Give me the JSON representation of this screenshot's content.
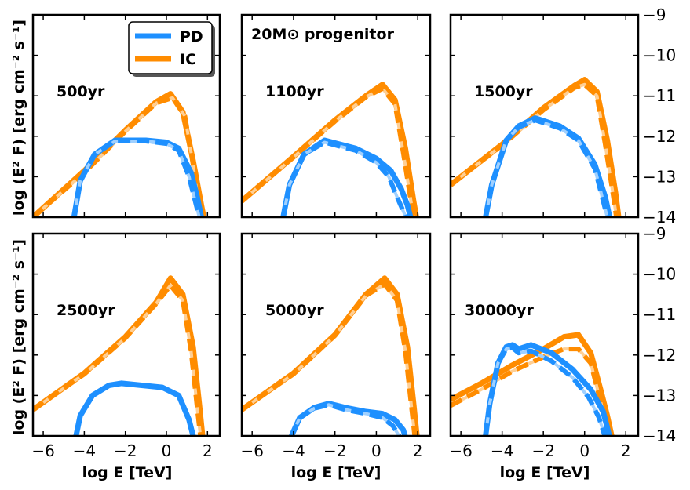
{
  "chart_data": {
    "type": "line",
    "title": "",
    "xlabel": "log E [TeV]",
    "ylabel": "log (E² F) [erg cm⁻² s⁻¹]",
    "annotation": "20M⊙ progenitor",
    "xlim": [
      -6.5,
      2.6
    ],
    "ylim": [
      -14,
      -9
    ],
    "xticks": [
      -6,
      -4,
      -2,
      0,
      2
    ],
    "xtick_labels": [
      "−6",
      "−4",
      "−2",
      "0",
      "2"
    ],
    "yticks": [
      -9,
      -10,
      -11,
      -12,
      -13,
      -14
    ],
    "ytick_labels": [
      "−9",
      "−10",
      "−11",
      "−12",
      "−13",
      "−14"
    ],
    "legend": [
      {
        "label": "PD",
        "color": "#1e90ff"
      },
      {
        "label": "IC",
        "color": "#ff8c00"
      }
    ],
    "colors": {
      "PD": "#1e90ff",
      "IC": "#ff8c00",
      "PD_light": "#9fd0ff",
      "IC_light": "#ffcf94"
    },
    "panels": [
      {
        "label": "500yr",
        "IC": {
          "x": [
            -6.5,
            -4,
            -2,
            -0.5,
            0.2,
            0.8,
            1.3,
            1.7,
            1.9
          ],
          "y": [
            -14,
            -12.85,
            -11.85,
            -11.15,
            -10.95,
            -11.4,
            -12.6,
            -13.7,
            -14.2
          ]
        },
        "IC_dashed": {
          "x": [
            -6.5,
            -4,
            -2,
            -0.5,
            0.3,
            0.9,
            1.3,
            1.6,
            1.8
          ],
          "y": [
            -14,
            -12.9,
            -11.88,
            -11.18,
            -11.05,
            -11.5,
            -12.7,
            -13.8,
            -14.2
          ]
        },
        "PD": {
          "x": [
            -4.5,
            -4.2,
            -3.5,
            -2.5,
            -1,
            0,
            0.6,
            1.2,
            1.5,
            1.7
          ],
          "y": [
            -14,
            -13.1,
            -12.45,
            -12.1,
            -12.1,
            -12.15,
            -12.3,
            -12.9,
            -13.5,
            -14
          ]
        },
        "PD_dashed": {
          "x": [
            -4.5,
            -4.2,
            -3.5,
            -2.5,
            -1,
            0,
            0.6,
            1.1,
            1.4,
            1.6
          ],
          "y": [
            -14,
            -13.1,
            -12.45,
            -12.12,
            -12.12,
            -12.18,
            -12.35,
            -13.0,
            -13.6,
            -14
          ]
        }
      },
      {
        "label": "1100yr",
        "IC": {
          "x": [
            -6.5,
            -4,
            -2,
            -0.5,
            0.3,
            0.9,
            1.4,
            1.8,
            2.0
          ],
          "y": [
            -13.6,
            -12.5,
            -11.6,
            -11.0,
            -10.72,
            -11.1,
            -12.3,
            -13.6,
            -14.2
          ]
        },
        "IC_dashed": {
          "x": [
            -6.5,
            -4,
            -2,
            -0.5,
            0.3,
            0.9,
            1.3,
            1.7,
            1.9
          ],
          "y": [
            -13.6,
            -12.52,
            -11.63,
            -11.03,
            -10.82,
            -11.2,
            -12.4,
            -13.7,
            -14.2
          ]
        },
        "PD": {
          "x": [
            -4.5,
            -4.2,
            -3.5,
            -2.5,
            -1,
            0,
            0.7,
            1.2,
            1.5,
            1.7
          ],
          "y": [
            -14,
            -13.2,
            -12.45,
            -12.1,
            -12.3,
            -12.55,
            -12.85,
            -13.3,
            -13.7,
            -14.1
          ]
        },
        "PD_dashed": {
          "x": [
            -4.5,
            -4.2,
            -3.5,
            -2.5,
            -1,
            0,
            0.6,
            1.0,
            1.3,
            1.5
          ],
          "y": [
            -14,
            -13.2,
            -12.45,
            -12.15,
            -12.35,
            -12.65,
            -13.0,
            -13.5,
            -13.85,
            -14.1
          ]
        }
      },
      {
        "label": "1500yr",
        "IC": {
          "x": [
            -6.5,
            -4,
            -2,
            -0.5,
            0,
            0.6,
            1.1,
            1.5,
            1.7
          ],
          "y": [
            -13.2,
            -12.2,
            -11.3,
            -10.75,
            -10.6,
            -10.9,
            -12.1,
            -13.4,
            -14.2
          ]
        },
        "IC_dashed": {
          "x": [
            -6.5,
            -4,
            -2,
            -0.5,
            0,
            0.6,
            1.0,
            1.4,
            1.6
          ],
          "y": [
            -13.2,
            -12.22,
            -11.35,
            -10.8,
            -10.72,
            -11.0,
            -12.2,
            -13.5,
            -14.2
          ]
        },
        "PD": {
          "x": [
            -4.8,
            -4.5,
            -3.8,
            -3.2,
            -2.4,
            -1.2,
            -0.3,
            0.5,
            1.0,
            1.3
          ],
          "y": [
            -14,
            -13.2,
            -12.1,
            -11.75,
            -11.55,
            -11.75,
            -12.05,
            -12.7,
            -13.5,
            -14.2
          ]
        },
        "PD_dashed": {
          "x": [
            -4.8,
            -4.5,
            -3.8,
            -3.2,
            -2.4,
            -1.2,
            -0.3,
            0.5,
            0.9,
            1.2
          ],
          "y": [
            -14,
            -13.2,
            -12.1,
            -11.78,
            -11.6,
            -11.8,
            -12.1,
            -12.8,
            -13.6,
            -14.2
          ]
        }
      },
      {
        "label": "2500yr",
        "IC": {
          "x": [
            -6.5,
            -4,
            -2,
            -0.5,
            0.2,
            0.8,
            1.3,
            1.6,
            1.8
          ],
          "y": [
            -13.35,
            -12.45,
            -11.55,
            -10.7,
            -10.1,
            -10.5,
            -11.8,
            -13.2,
            -14.2
          ]
        },
        "IC_dashed": {
          "x": [
            -6.5,
            -4,
            -2,
            -0.5,
            0.2,
            0.8,
            1.2,
            1.5,
            1.7
          ],
          "y": [
            -13.35,
            -12.47,
            -11.58,
            -10.73,
            -10.28,
            -10.65,
            -11.9,
            -13.3,
            -14.2
          ]
        },
        "PD": {
          "x": [
            -4.4,
            -4.2,
            -3.6,
            -2.8,
            -2.2,
            -1.2,
            -0.2,
            0.6,
            1.1,
            1.4
          ],
          "y": [
            -14,
            -13.5,
            -13.0,
            -12.75,
            -12.7,
            -12.75,
            -12.8,
            -13.0,
            -13.6,
            -14.2
          ]
        }
      },
      {
        "label": "5000yr",
        "IC": {
          "x": [
            -6.5,
            -4,
            -2,
            -0.5,
            0.4,
            1.0,
            1.5,
            1.8,
            2.0
          ],
          "y": [
            -13.35,
            -12.45,
            -11.5,
            -10.5,
            -10.1,
            -10.5,
            -11.8,
            -13.2,
            -14.2
          ]
        },
        "IC_dashed": {
          "x": [
            -6.5,
            -4,
            -2,
            -0.5,
            0.4,
            1.0,
            1.4,
            1.7,
            1.9
          ],
          "y": [
            -13.35,
            -12.47,
            -11.52,
            -10.53,
            -10.25,
            -10.65,
            -11.9,
            -13.3,
            -14.2
          ]
        },
        "PD": {
          "x": [
            -4.1,
            -3.7,
            -3.0,
            -2.3,
            -1.5,
            -0.5,
            0.3,
            0.9,
            1.3,
            1.5
          ],
          "y": [
            -14,
            -13.55,
            -13.3,
            -13.2,
            -13.3,
            -13.4,
            -13.45,
            -13.6,
            -13.85,
            -14.2
          ]
        },
        "PD_dashed": {
          "x": [
            -4.1,
            -3.7,
            -3.0,
            -2.3,
            -1.5,
            -0.5,
            0.3,
            0.8,
            1.1,
            1.3
          ],
          "y": [
            -14,
            -13.55,
            -13.32,
            -13.23,
            -13.35,
            -13.45,
            -13.55,
            -13.75,
            -14.0,
            -14.2
          ]
        }
      },
      {
        "label": "30000yr",
        "IC": {
          "x": [
            -6.5,
            -5,
            -3.5,
            -2,
            -1,
            -0.3,
            0.3,
            0.8,
            1.1,
            1.4
          ],
          "y": [
            -13.1,
            -12.7,
            -12.25,
            -11.85,
            -11.55,
            -11.5,
            -11.95,
            -12.9,
            -13.5,
            -14.2
          ]
        },
        "IC_dashed": {
          "x": [
            -6.5,
            -5,
            -3.5,
            -2,
            -1,
            -0.3,
            0.3,
            0.7,
            1.0,
            1.3
          ],
          "y": [
            -13.25,
            -12.85,
            -12.4,
            -12.05,
            -11.85,
            -11.85,
            -12.2,
            -13.0,
            -13.6,
            -14.2
          ]
        },
        "PD": {
          "x": [
            -4.8,
            -4.6,
            -4.2,
            -3.8,
            -3.5,
            -3.2,
            -2.6,
            -1.6,
            -0.6,
            0.3,
            0.9,
            1.3
          ],
          "y": [
            -14,
            -13.2,
            -12.2,
            -11.8,
            -11.75,
            -11.85,
            -11.75,
            -11.95,
            -12.35,
            -12.85,
            -13.4,
            -14.2
          ]
        },
        "PD_dashed": {
          "x": [
            -4.8,
            -4.6,
            -4.2,
            -3.8,
            -3.5,
            -3.2,
            -2.6,
            -1.6,
            -0.6,
            0.2,
            0.7,
            1.1
          ],
          "y": [
            -14,
            -13.2,
            -12.2,
            -11.85,
            -11.82,
            -11.95,
            -11.9,
            -12.15,
            -12.55,
            -13.05,
            -13.55,
            -14.2
          ]
        }
      }
    ]
  }
}
